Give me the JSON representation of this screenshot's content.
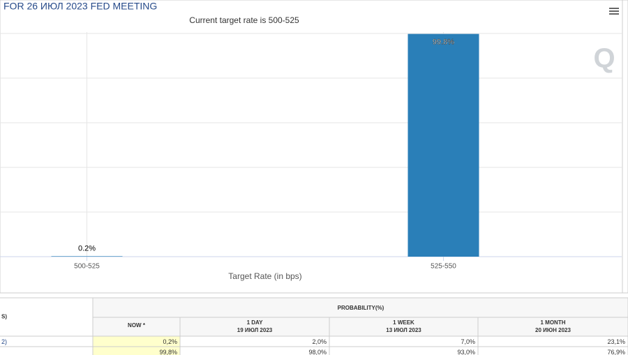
{
  "chart_data": {
    "type": "bar",
    "title": "FOR 26 ИЮЛ 2023 FED MEETING",
    "subtitle": "Current target rate is 500-525",
    "x_label": "Target Rate (in bps)",
    "categories": [
      "500-525",
      "525-550"
    ],
    "values": [
      0.2,
      99.8
    ],
    "value_labels": [
      "0.2%",
      "99.8%"
    ],
    "color": "#2a7fb8",
    "ylim": [
      0,
      100
    ],
    "yticks": [
      0,
      20,
      40,
      60,
      80,
      100
    ],
    "grid": true
  },
  "logo": "Q",
  "table": {
    "corner": "S)",
    "group": "PROBABILITY(%)",
    "columns": [
      {
        "label": "NOW *"
      },
      {
        "label": "1 DAY",
        "date": "19 ИЮЛ 2023"
      },
      {
        "label": "1 WEEK",
        "date": "13 ИЮЛ 2023"
      },
      {
        "label": "1 MONTH",
        "date": "20 ИЮН 2023"
      }
    ],
    "rows": [
      {
        "label": "2)",
        "values": [
          "0,2%",
          "2,0%",
          "7,0%",
          "23,1%"
        ]
      },
      {
        "values": [
          "99,8%",
          "98,0%",
          "93,0%",
          "76,9%"
        ]
      }
    ]
  }
}
